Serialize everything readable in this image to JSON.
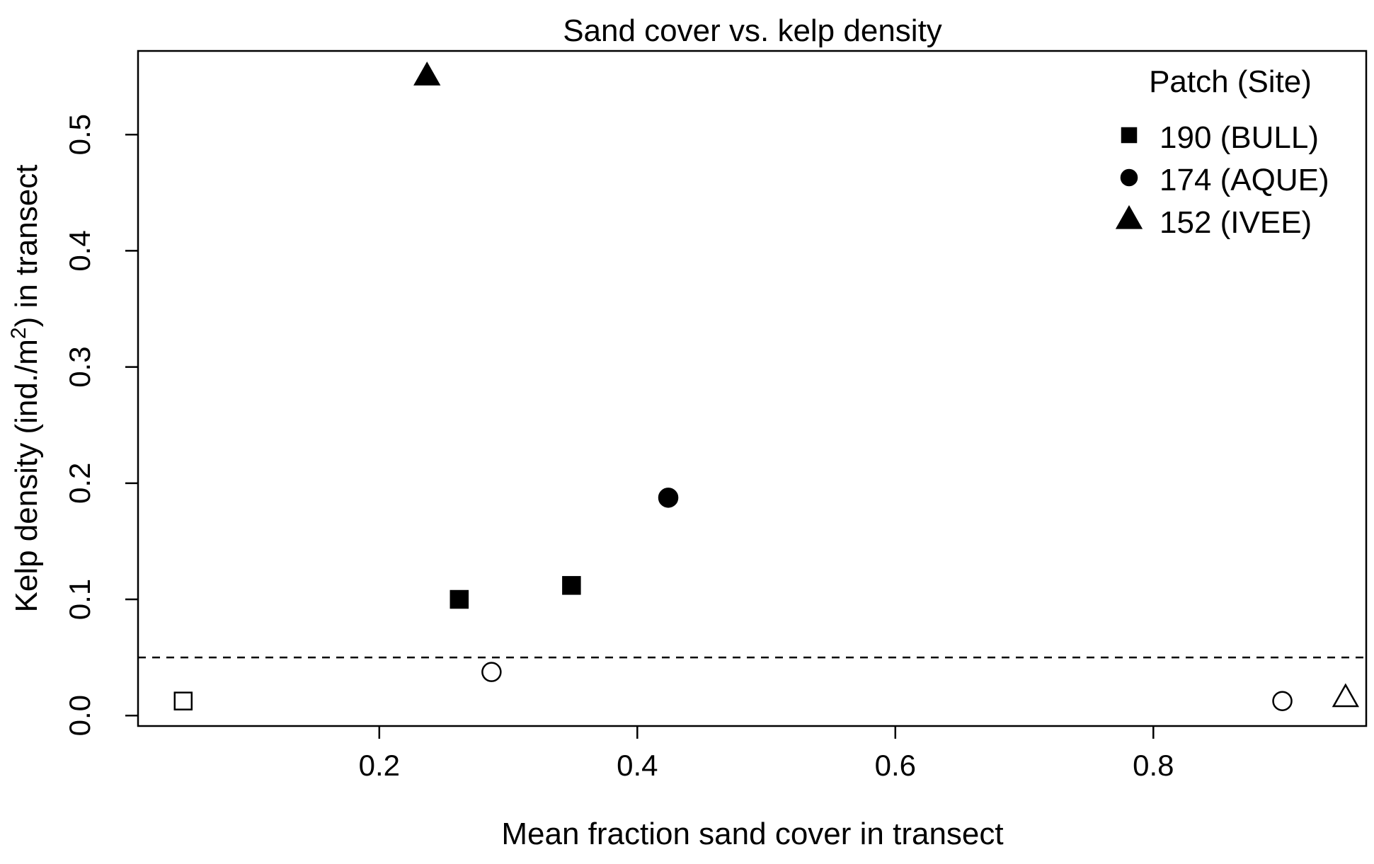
{
  "chart_data": {
    "type": "scatter",
    "title": "Sand cover vs. kelp density",
    "xlabel": "Mean fraction sand cover in transect",
    "ylabel": {
      "prefix": "Kelp density (ind./m",
      "superscript": "2",
      "suffix": ") in transect"
    },
    "xlim": [
      0.013,
      0.965
    ],
    "ylim": [
      -0.009,
      0.572
    ],
    "x_ticks": [
      {
        "value": 0.2,
        "label": "0.2"
      },
      {
        "value": 0.4,
        "label": "0.4"
      },
      {
        "value": 0.6,
        "label": "0.6"
      },
      {
        "value": 0.8,
        "label": "0.8"
      }
    ],
    "y_ticks": [
      {
        "value": 0.0,
        "label": "0.0"
      },
      {
        "value": 0.1,
        "label": "0.1"
      },
      {
        "value": 0.2,
        "label": "0.2"
      },
      {
        "value": 0.3,
        "label": "0.3"
      },
      {
        "value": 0.4,
        "label": "0.4"
      },
      {
        "value": 0.5,
        "label": "0.5"
      }
    ],
    "threshold_line": {
      "y": 0.05,
      "style": "dashed"
    },
    "legend": {
      "title": "Patch (Site)",
      "position": "top-right",
      "entries": [
        {
          "label": "190 (BULL)",
          "shape": "square"
        },
        {
          "label": "174 (AQUE)",
          "shape": "circle"
        },
        {
          "label": "152 (IVEE)",
          "shape": "triangle"
        }
      ]
    },
    "points": [
      {
        "x": 0.048,
        "y": 0.0125,
        "shape": "square",
        "filled": false
      },
      {
        "x": 0.262,
        "y": 0.1,
        "shape": "square",
        "filled": true
      },
      {
        "x": 0.349,
        "y": 0.112,
        "shape": "square",
        "filled": true
      },
      {
        "x": 0.287,
        "y": 0.0375,
        "shape": "circle",
        "filled": false
      },
      {
        "x": 0.424,
        "y": 0.1875,
        "shape": "circle",
        "filled": true
      },
      {
        "x": 0.9,
        "y": 0.0125,
        "shape": "circle",
        "filled": false
      },
      {
        "x": 0.237,
        "y": 0.55,
        "shape": "triangle",
        "filled": true
      },
      {
        "x": 0.949,
        "y": 0.015,
        "shape": "triangle",
        "filled": false
      }
    ]
  }
}
